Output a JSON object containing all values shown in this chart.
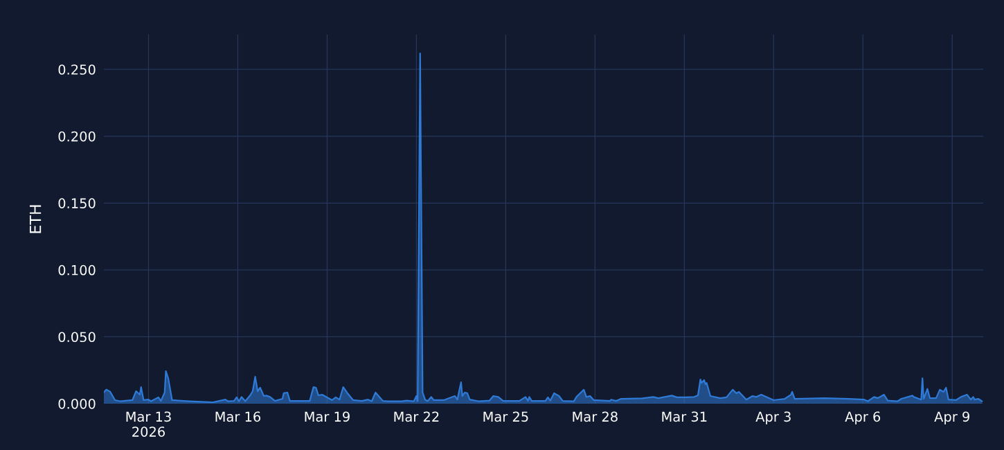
{
  "chart_data": {
    "type": "area",
    "ylabel": "ETH",
    "grid": true,
    "legend": false,
    "xlim": [
      "2026-03-11T12:00",
      "2026-04-10T01:00"
    ],
    "xticks": [
      {
        "value": "2026-03-13",
        "label": "Mar 13\n2026"
      },
      {
        "value": "2026-03-16",
        "label": "Mar 16"
      },
      {
        "value": "2026-03-19",
        "label": "Mar 19"
      },
      {
        "value": "2026-03-22",
        "label": "Mar 22"
      },
      {
        "value": "2026-03-25",
        "label": "Mar 25"
      },
      {
        "value": "2026-03-28",
        "label": "Mar 28"
      },
      {
        "value": "2026-03-31",
        "label": "Mar 31"
      },
      {
        "value": "2026-04-03",
        "label": "Apr 3"
      },
      {
        "value": "2026-04-06",
        "label": "Apr 6"
      },
      {
        "value": "2026-04-09",
        "label": "Apr 9"
      }
    ],
    "ylim": [
      0,
      0.276
    ],
    "yticks": [
      {
        "value": 0,
        "label": "0.000"
      },
      {
        "value": 0.05,
        "label": "0.050"
      },
      {
        "value": 0.1,
        "label": "0.100"
      },
      {
        "value": 0.15,
        "label": "0.150"
      },
      {
        "value": 0.2,
        "label": "0.200"
      },
      {
        "value": 0.25,
        "label": "0.250"
      }
    ],
    "series": [
      {
        "color": "#2f7ad6",
        "x": [
          "2026-03-11T12:00",
          "2026-03-11T14:00",
          "2026-03-11T17:00",
          "2026-03-11T21:00",
          "2026-03-12T01:00",
          "2026-03-12T11:00",
          "2026-03-12T14:00",
          "2026-03-12T17:00",
          "2026-03-12T18:00",
          "2026-03-12T20:00",
          "2026-03-13T00:00",
          "2026-03-13T02:00",
          "2026-03-13T08:00",
          "2026-03-13T10:00",
          "2026-03-13T13:00",
          "2026-03-13T14:00",
          "2026-03-13T16:00",
          "2026-03-13T19:00",
          "2026-03-14T09:00",
          "2026-03-15T04:00",
          "2026-03-15T14:00",
          "2026-03-15T16:00",
          "2026-03-15T21:00",
          "2026-03-15T23:00",
          "2026-03-16T01:00",
          "2026-03-16T03:00",
          "2026-03-16T06:00",
          "2026-03-16T10:00",
          "2026-03-16T12:00",
          "2026-03-16T14:00",
          "2026-03-16T16:00",
          "2026-03-16T18:00",
          "2026-03-16T21:00",
          "2026-03-16T23:00",
          "2026-03-17T02:00",
          "2026-03-17T06:00",
          "2026-03-17T12:00",
          "2026-03-17T13:00",
          "2026-03-17T16:00",
          "2026-03-17T18:00",
          "2026-03-18T10:00",
          "2026-03-18T13:00",
          "2026-03-18T15:00",
          "2026-03-18T17:00",
          "2026-03-18T20:00",
          "2026-03-19T01:00",
          "2026-03-19T04:00",
          "2026-03-19T07:00",
          "2026-03-19T10:00",
          "2026-03-19T13:00",
          "2026-03-19T16:00",
          "2026-03-19T21:00",
          "2026-03-20T04:00",
          "2026-03-20T09:00",
          "2026-03-20T12:00",
          "2026-03-20T15:00",
          "2026-03-20T17:00",
          "2026-03-20T21:00",
          "2026-03-21T01:00",
          "2026-03-21T12:00",
          "2026-03-21T16:00",
          "2026-03-21T22:00",
          "2026-03-22T00:00",
          "2026-03-22T01:00",
          "2026-03-22T03:00",
          "2026-03-22T05:00",
          "2026-03-22T07:00",
          "2026-03-22T09:00",
          "2026-03-22T12:00",
          "2026-03-22T14:00",
          "2026-03-22T22:00",
          "2026-03-23T07:00",
          "2026-03-23T09:00",
          "2026-03-23T12:00",
          "2026-03-23T13:00",
          "2026-03-23T15:00",
          "2026-03-23T17:00",
          "2026-03-23T19:00",
          "2026-03-24T02:00",
          "2026-03-24T11:00",
          "2026-03-24T14:00",
          "2026-03-24T18:00",
          "2026-03-24T22:00",
          "2026-03-25T11:00",
          "2026-03-25T16:00",
          "2026-03-25T18:00",
          "2026-03-25T19:00",
          "2026-03-25T21:00",
          "2026-03-26T08:00",
          "2026-03-26T10:00",
          "2026-03-26T12:00",
          "2026-03-26T15:00",
          "2026-03-26T19:00",
          "2026-03-26T22:00",
          "2026-03-27T07:00",
          "2026-03-27T09:00",
          "2026-03-27T12:00",
          "2026-03-27T15:00",
          "2026-03-27T17:00",
          "2026-03-27T20:00",
          "2026-03-27T23:00",
          "2026-03-28T12:00",
          "2026-03-28T13:00",
          "2026-03-28T17:00",
          "2026-03-28T21:00",
          "2026-03-29T14:00",
          "2026-03-29T23:00",
          "2026-03-30T03:00",
          "2026-03-30T14:00",
          "2026-03-30T18:00",
          "2026-03-31T01:00",
          "2026-03-31T08:00",
          "2026-03-31T11:00",
          "2026-03-31T13:00",
          "2026-03-31T14:00",
          "2026-03-31T16:00",
          "2026-03-31T17:00",
          "2026-03-31T18:00",
          "2026-03-31T21:00",
          "2026-04-01T05:00",
          "2026-04-01T10:00",
          "2026-04-01T15:00",
          "2026-04-01T18:00",
          "2026-04-01T20:00",
          "2026-04-02T02:00",
          "2026-04-02T07:00",
          "2026-04-02T10:00",
          "2026-04-02T14:00",
          "2026-04-03T00:00",
          "2026-04-03T09:00",
          "2026-04-03T14:00",
          "2026-04-03T15:00",
          "2026-04-03T17:00",
          "2026-04-04T17:00",
          "2026-04-05T13:00",
          "2026-04-06T01:00",
          "2026-04-06T04:00",
          "2026-04-06T09:00",
          "2026-04-06T12:00",
          "2026-04-06T17:00",
          "2026-04-06T20:00",
          "2026-04-07T04:00",
          "2026-04-07T07:00",
          "2026-04-07T16:00",
          "2026-04-07T17:00",
          "2026-04-07T23:00",
          "2026-04-08T00:00",
          "2026-04-08T01:00",
          "2026-04-08T04:00",
          "2026-04-08T06:00",
          "2026-04-08T11:00",
          "2026-04-08T14:00",
          "2026-04-08T17:00",
          "2026-04-08T19:00",
          "2026-04-08T21:00",
          "2026-04-09T03:00",
          "2026-04-09T07:00",
          "2026-04-09T12:00",
          "2026-04-09T15:00",
          "2026-04-09T17:00",
          "2026-04-09T18:00",
          "2026-04-09T21:00",
          "2026-04-10T00:00"
        ],
        "values": [
          0.0085,
          0.0105,
          0.009,
          0.0026,
          0.0018,
          0.0026,
          0.0093,
          0.0067,
          0.0124,
          0.0026,
          0.003,
          0.0018,
          0.0047,
          0.002,
          0.0083,
          0.0243,
          0.0186,
          0.0026,
          0.0018,
          0.001,
          0.003,
          0.0018,
          0.002,
          0.0047,
          0.0018,
          0.005,
          0.0018,
          0.0062,
          0.0093,
          0.0201,
          0.0093,
          0.0119,
          0.0057,
          0.006,
          0.005,
          0.002,
          0.0036,
          0.0078,
          0.0083,
          0.002,
          0.002,
          0.0124,
          0.0119,
          0.0062,
          0.0067,
          0.0041,
          0.0026,
          0.0047,
          0.003,
          0.0124,
          0.0083,
          0.0026,
          0.002,
          0.003,
          0.0018,
          0.0083,
          0.0062,
          0.002,
          0.0018,
          0.0018,
          0.0023,
          0.0018,
          0.0057,
          0.0018,
          0.262,
          0.0083,
          0.003,
          0.0018,
          0.005,
          0.0026,
          0.0026,
          0.0057,
          0.003,
          0.016,
          0.0057,
          0.0083,
          0.0078,
          0.003,
          0.0018,
          0.0023,
          0.0057,
          0.005,
          0.002,
          0.002,
          0.005,
          0.002,
          0.005,
          0.002,
          0.002,
          0.0047,
          0.0023,
          0.0078,
          0.0057,
          0.002,
          0.0018,
          0.005,
          0.0078,
          0.0104,
          0.005,
          0.0057,
          0.0026,
          0.002,
          0.003,
          0.002,
          0.0036,
          0.0039,
          0.005,
          0.0041,
          0.006,
          0.0047,
          0.0047,
          0.005,
          0.0062,
          0.0181,
          0.0155,
          0.0176,
          0.0145,
          0.0155,
          0.0057,
          0.0041,
          0.0047,
          0.0104,
          0.0078,
          0.0088,
          0.003,
          0.0057,
          0.005,
          0.0067,
          0.0026,
          0.0036,
          0.0067,
          0.0088,
          0.0036,
          0.0041,
          0.0036,
          0.003,
          0.0018,
          0.005,
          0.0041,
          0.0067,
          0.0023,
          0.0018,
          0.0036,
          0.006,
          0.005,
          0.003,
          0.019,
          0.0036,
          0.011,
          0.0041,
          0.0041,
          0.0104,
          0.0088,
          0.0119,
          0.003,
          0.0026,
          0.005,
          0.0067,
          0.003,
          0.005,
          0.003,
          0.0036,
          0.0018
        ]
      }
    ]
  }
}
